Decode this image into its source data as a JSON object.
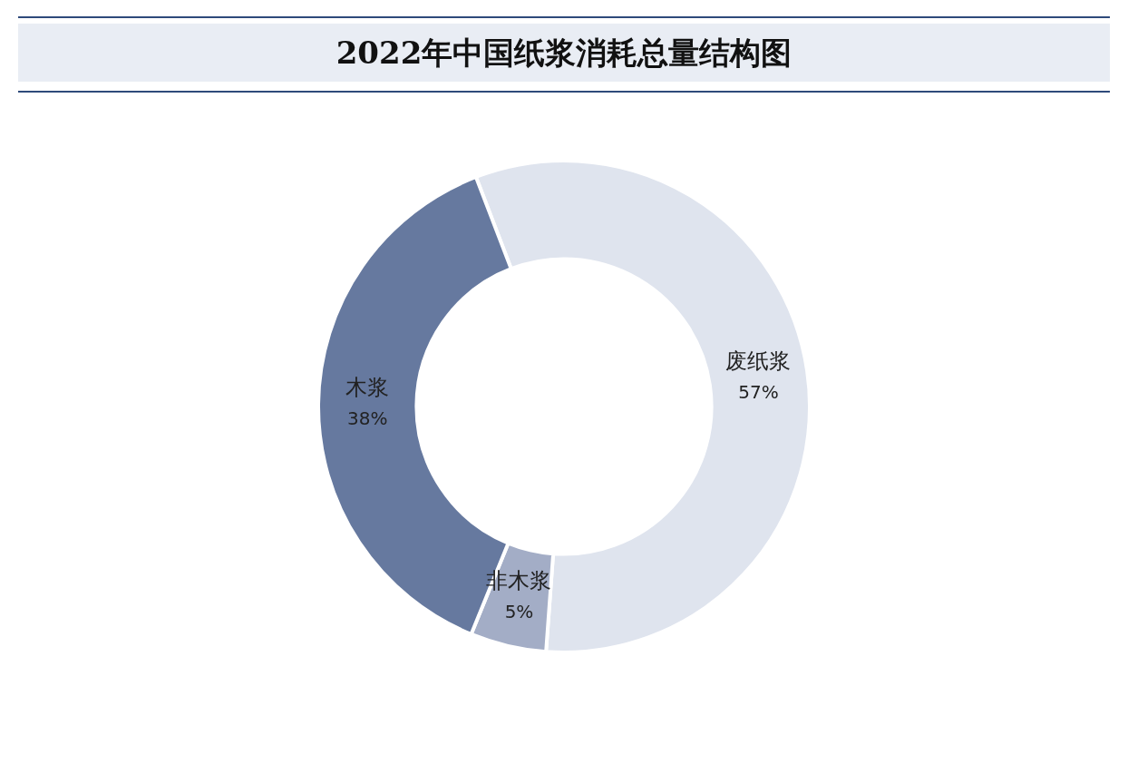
{
  "chart_data": {
    "type": "donut",
    "title": "2022年中国纸浆消耗总量结构图",
    "categories": [
      "废纸浆",
      "非木浆",
      "木浆"
    ],
    "values": [
      57,
      5,
      38
    ],
    "value_labels": [
      "57%",
      "5%",
      "38%"
    ],
    "colors": [
      "#dfe4ee",
      "#a3adc6",
      "#66799f"
    ]
  }
}
